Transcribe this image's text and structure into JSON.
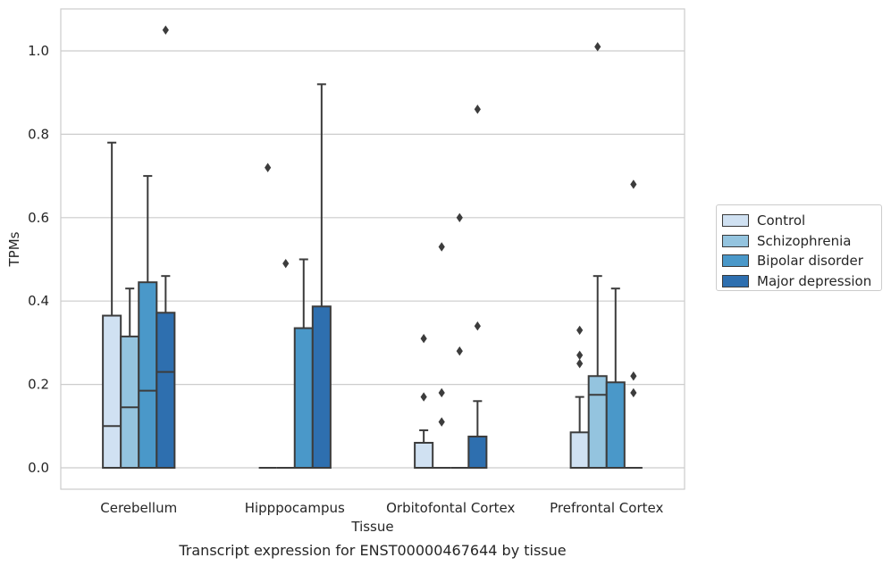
{
  "chart_data": {
    "type": "box",
    "title": "Transcript expression for ENST00000467644 by tissue",
    "xlabel": "Tissue",
    "ylabel": "TPMs",
    "ylim": [
      -0.05,
      1.1
    ],
    "yticks": [
      "0.0",
      "0.2",
      "0.4",
      "0.6",
      "0.8",
      "1.0"
    ],
    "yticks_values": [
      0,
      0.2,
      0.4,
      0.6,
      0.8,
      1.0
    ],
    "grid": true,
    "legend_position": "right",
    "categories": [
      "Cerebellum",
      "Hipppocampus",
      "Orbitofontal Cortex",
      "Prefrontal Cortex"
    ],
    "series": [
      {
        "name": "Control",
        "color": "#d0e1f2",
        "boxes": [
          {
            "q1": 0.0,
            "median": 0.1,
            "q3": 0.365,
            "whisker_low": 0.0,
            "whisker_high": 0.78,
            "outliers": []
          },
          {
            "q1": 0.0,
            "median": 0.0,
            "q3": 0.0,
            "whisker_low": 0.0,
            "whisker_high": 0.0,
            "outliers": [
              0.72
            ]
          },
          {
            "q1": 0.0,
            "median": 0.0,
            "q3": 0.06,
            "whisker_low": 0.0,
            "whisker_high": 0.09,
            "outliers": [
              0.31,
              0.17
            ]
          },
          {
            "q1": 0.0,
            "median": 0.0,
            "q3": 0.085,
            "whisker_low": 0.0,
            "whisker_high": 0.17,
            "outliers": [
              0.33,
              0.27,
              0.25
            ]
          }
        ]
      },
      {
        "name": "Schizophrenia",
        "color": "#94c4df",
        "boxes": [
          {
            "q1": 0.0,
            "median": 0.145,
            "q3": 0.315,
            "whisker_low": 0.0,
            "whisker_high": 0.43,
            "outliers": []
          },
          {
            "q1": 0.0,
            "median": 0.0,
            "q3": 0.0,
            "whisker_low": 0.0,
            "whisker_high": 0.0,
            "outliers": [
              0.49
            ]
          },
          {
            "q1": 0.0,
            "median": 0.0,
            "q3": 0.0,
            "whisker_low": 0.0,
            "whisker_high": 0.0,
            "outliers": [
              0.53,
              0.18,
              0.11
            ]
          },
          {
            "q1": 0.0,
            "median": 0.175,
            "q3": 0.22,
            "whisker_low": 0.0,
            "whisker_high": 0.46,
            "outliers": [
              1.01
            ]
          }
        ]
      },
      {
        "name": "Bipolar disorder",
        "color": "#4a98c9",
        "boxes": [
          {
            "q1": 0.0,
            "median": 0.185,
            "q3": 0.445,
            "whisker_low": 0.0,
            "whisker_high": 0.7,
            "outliers": []
          },
          {
            "q1": 0.0,
            "median": 0.0,
            "q3": 0.335,
            "whisker_low": 0.0,
            "whisker_high": 0.5,
            "outliers": []
          },
          {
            "q1": 0.0,
            "median": 0.0,
            "q3": 0.0,
            "whisker_low": 0.0,
            "whisker_high": 0.0,
            "outliers": [
              0.6,
              0.28
            ]
          },
          {
            "q1": 0.0,
            "median": 0.0,
            "q3": 0.205,
            "whisker_low": 0.0,
            "whisker_high": 0.43,
            "outliers": []
          }
        ]
      },
      {
        "name": "Major depression",
        "color": "#2e6faf",
        "boxes": [
          {
            "q1": 0.0,
            "median": 0.23,
            "q3": 0.372,
            "whisker_low": 0.0,
            "whisker_high": 0.46,
            "outliers": [
              1.05
            ]
          },
          {
            "q1": 0.0,
            "median": 0.0,
            "q3": 0.387,
            "whisker_low": 0.0,
            "whisker_high": 0.92,
            "outliers": []
          },
          {
            "q1": 0.0,
            "median": 0.0,
            "q3": 0.075,
            "whisker_low": 0.0,
            "whisker_high": 0.16,
            "outliers": [
              0.86,
              0.34
            ]
          },
          {
            "q1": 0.0,
            "median": 0.0,
            "q3": 0.0,
            "whisker_low": 0.0,
            "whisker_high": 0.0,
            "outliers": [
              0.68,
              0.22,
              0.18
            ]
          }
        ]
      }
    ]
  }
}
